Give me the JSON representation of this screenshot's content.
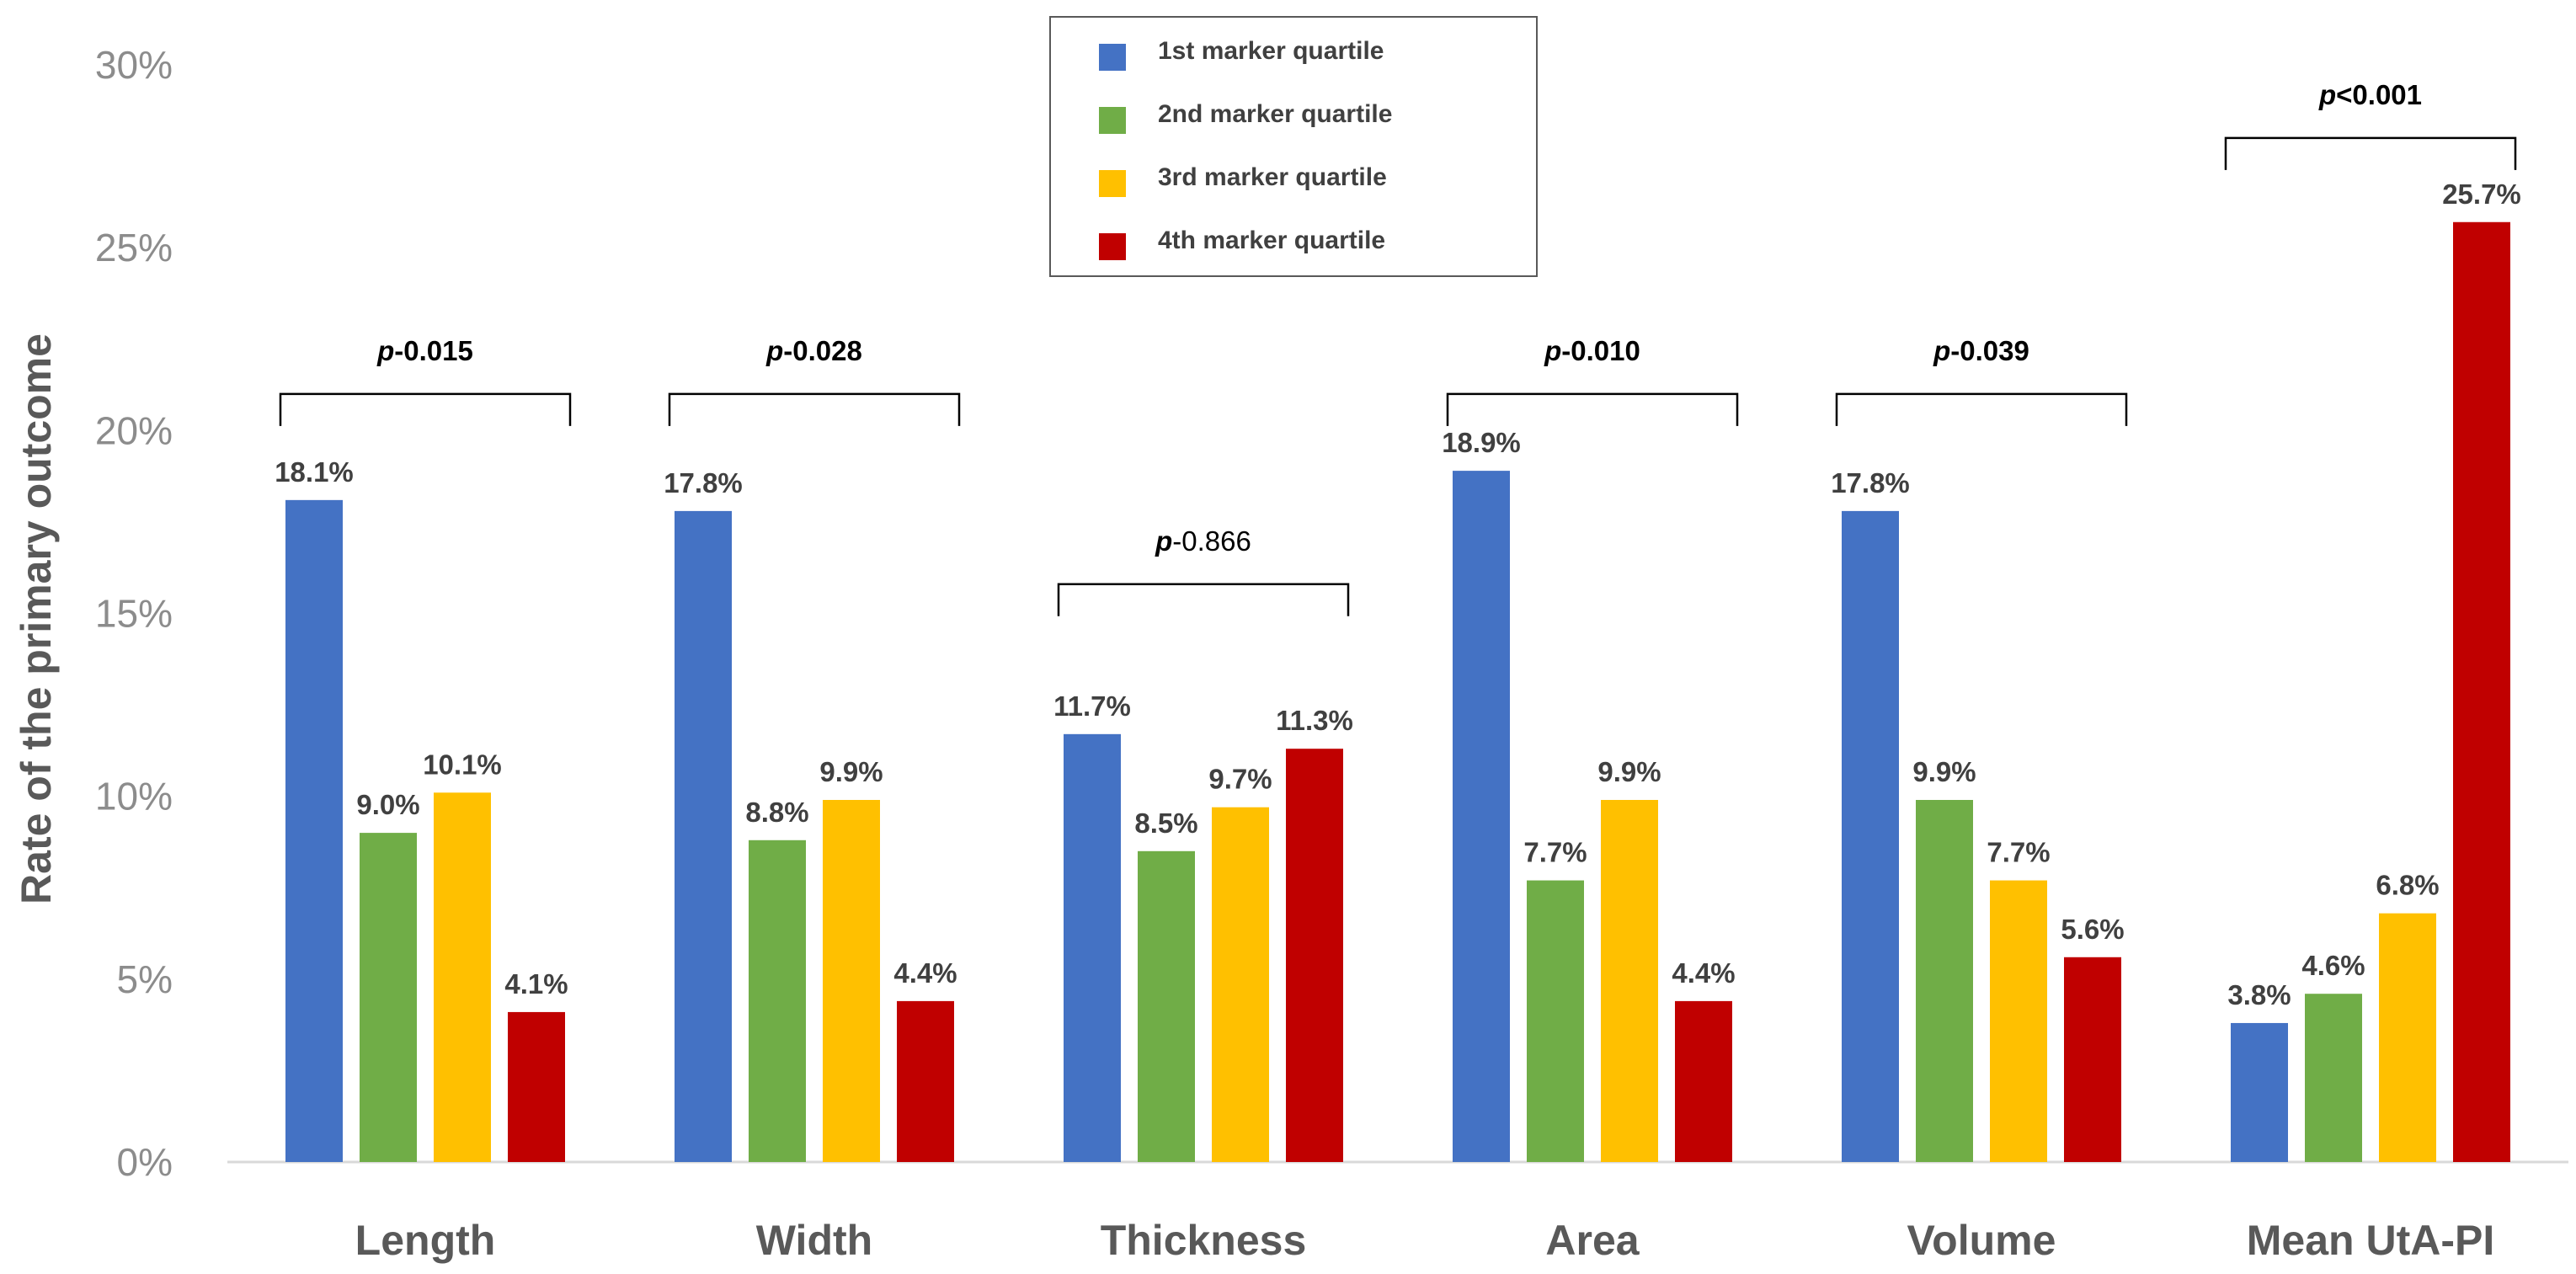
{
  "chart_data": {
    "type": "bar",
    "title": "",
    "xlabel": "",
    "ylabel": "Rate of the primary outcome",
    "ylim": [
      0,
      30
    ],
    "yticks": [
      0,
      5,
      10,
      15,
      20,
      25,
      30
    ],
    "ytick_labels": [
      "0%",
      "5%",
      "10%",
      "15%",
      "20%",
      "25%",
      "30%"
    ],
    "categories": [
      "Length",
      "Width",
      "Thickness",
      "Area",
      "Volume",
      "Mean UtA-PI"
    ],
    "series": [
      {
        "name": "1st marker quartile",
        "color": "#4472c4",
        "values": [
          18.1,
          17.8,
          11.7,
          18.9,
          17.8,
          3.8
        ],
        "labels": [
          "18.1%",
          "17.8%",
          "11.7%",
          "18.9%",
          "17.8%",
          "3.8%"
        ]
      },
      {
        "name": "2nd marker quartile",
        "color": "#70ad47",
        "values": [
          9.0,
          8.8,
          8.5,
          7.7,
          9.9,
          4.6
        ],
        "labels": [
          "9.0%",
          "8.8%",
          "8.5%",
          "7.7%",
          "9.9%",
          "4.6%"
        ]
      },
      {
        "name": "3rd marker quartile",
        "color": "#ffc000",
        "values": [
          10.1,
          9.9,
          9.7,
          9.9,
          7.7,
          6.8
        ],
        "labels": [
          "10.1%",
          "9.9%",
          "9.7%",
          "9.9%",
          "7.7%",
          "6.8%"
        ]
      },
      {
        "name": "4th marker quartile",
        "color": "#c00000",
        "values": [
          4.1,
          4.4,
          11.3,
          4.4,
          5.6,
          25.7
        ],
        "labels": [
          "4.1%",
          "4.4%",
          "11.3%",
          "4.4%",
          "5.6%",
          "25.7%"
        ]
      }
    ],
    "annotations": [
      {
        "category": "Length",
        "prefix": "p",
        "text": "-0.015",
        "bold": true,
        "bracket_level": 21.0
      },
      {
        "category": "Width",
        "prefix": "p",
        "text": "-0.028",
        "bold": true,
        "bracket_level": 21.0
      },
      {
        "category": "Thickness",
        "prefix": "p",
        "text": "-0.866",
        "bold": false,
        "bracket_level": 15.8
      },
      {
        "category": "Area",
        "prefix": "p",
        "text": "-0.010",
        "bold": true,
        "bracket_level": 21.0
      },
      {
        "category": "Volume",
        "prefix": "p",
        "text": "-0.039",
        "bold": true,
        "bracket_level": 21.0
      },
      {
        "category": "Mean UtA-PI",
        "prefix": "p",
        "text": "<0.001",
        "bold": true,
        "bracket_level": 28.0
      }
    ],
    "legend_position": "top-center",
    "grid": false
  }
}
